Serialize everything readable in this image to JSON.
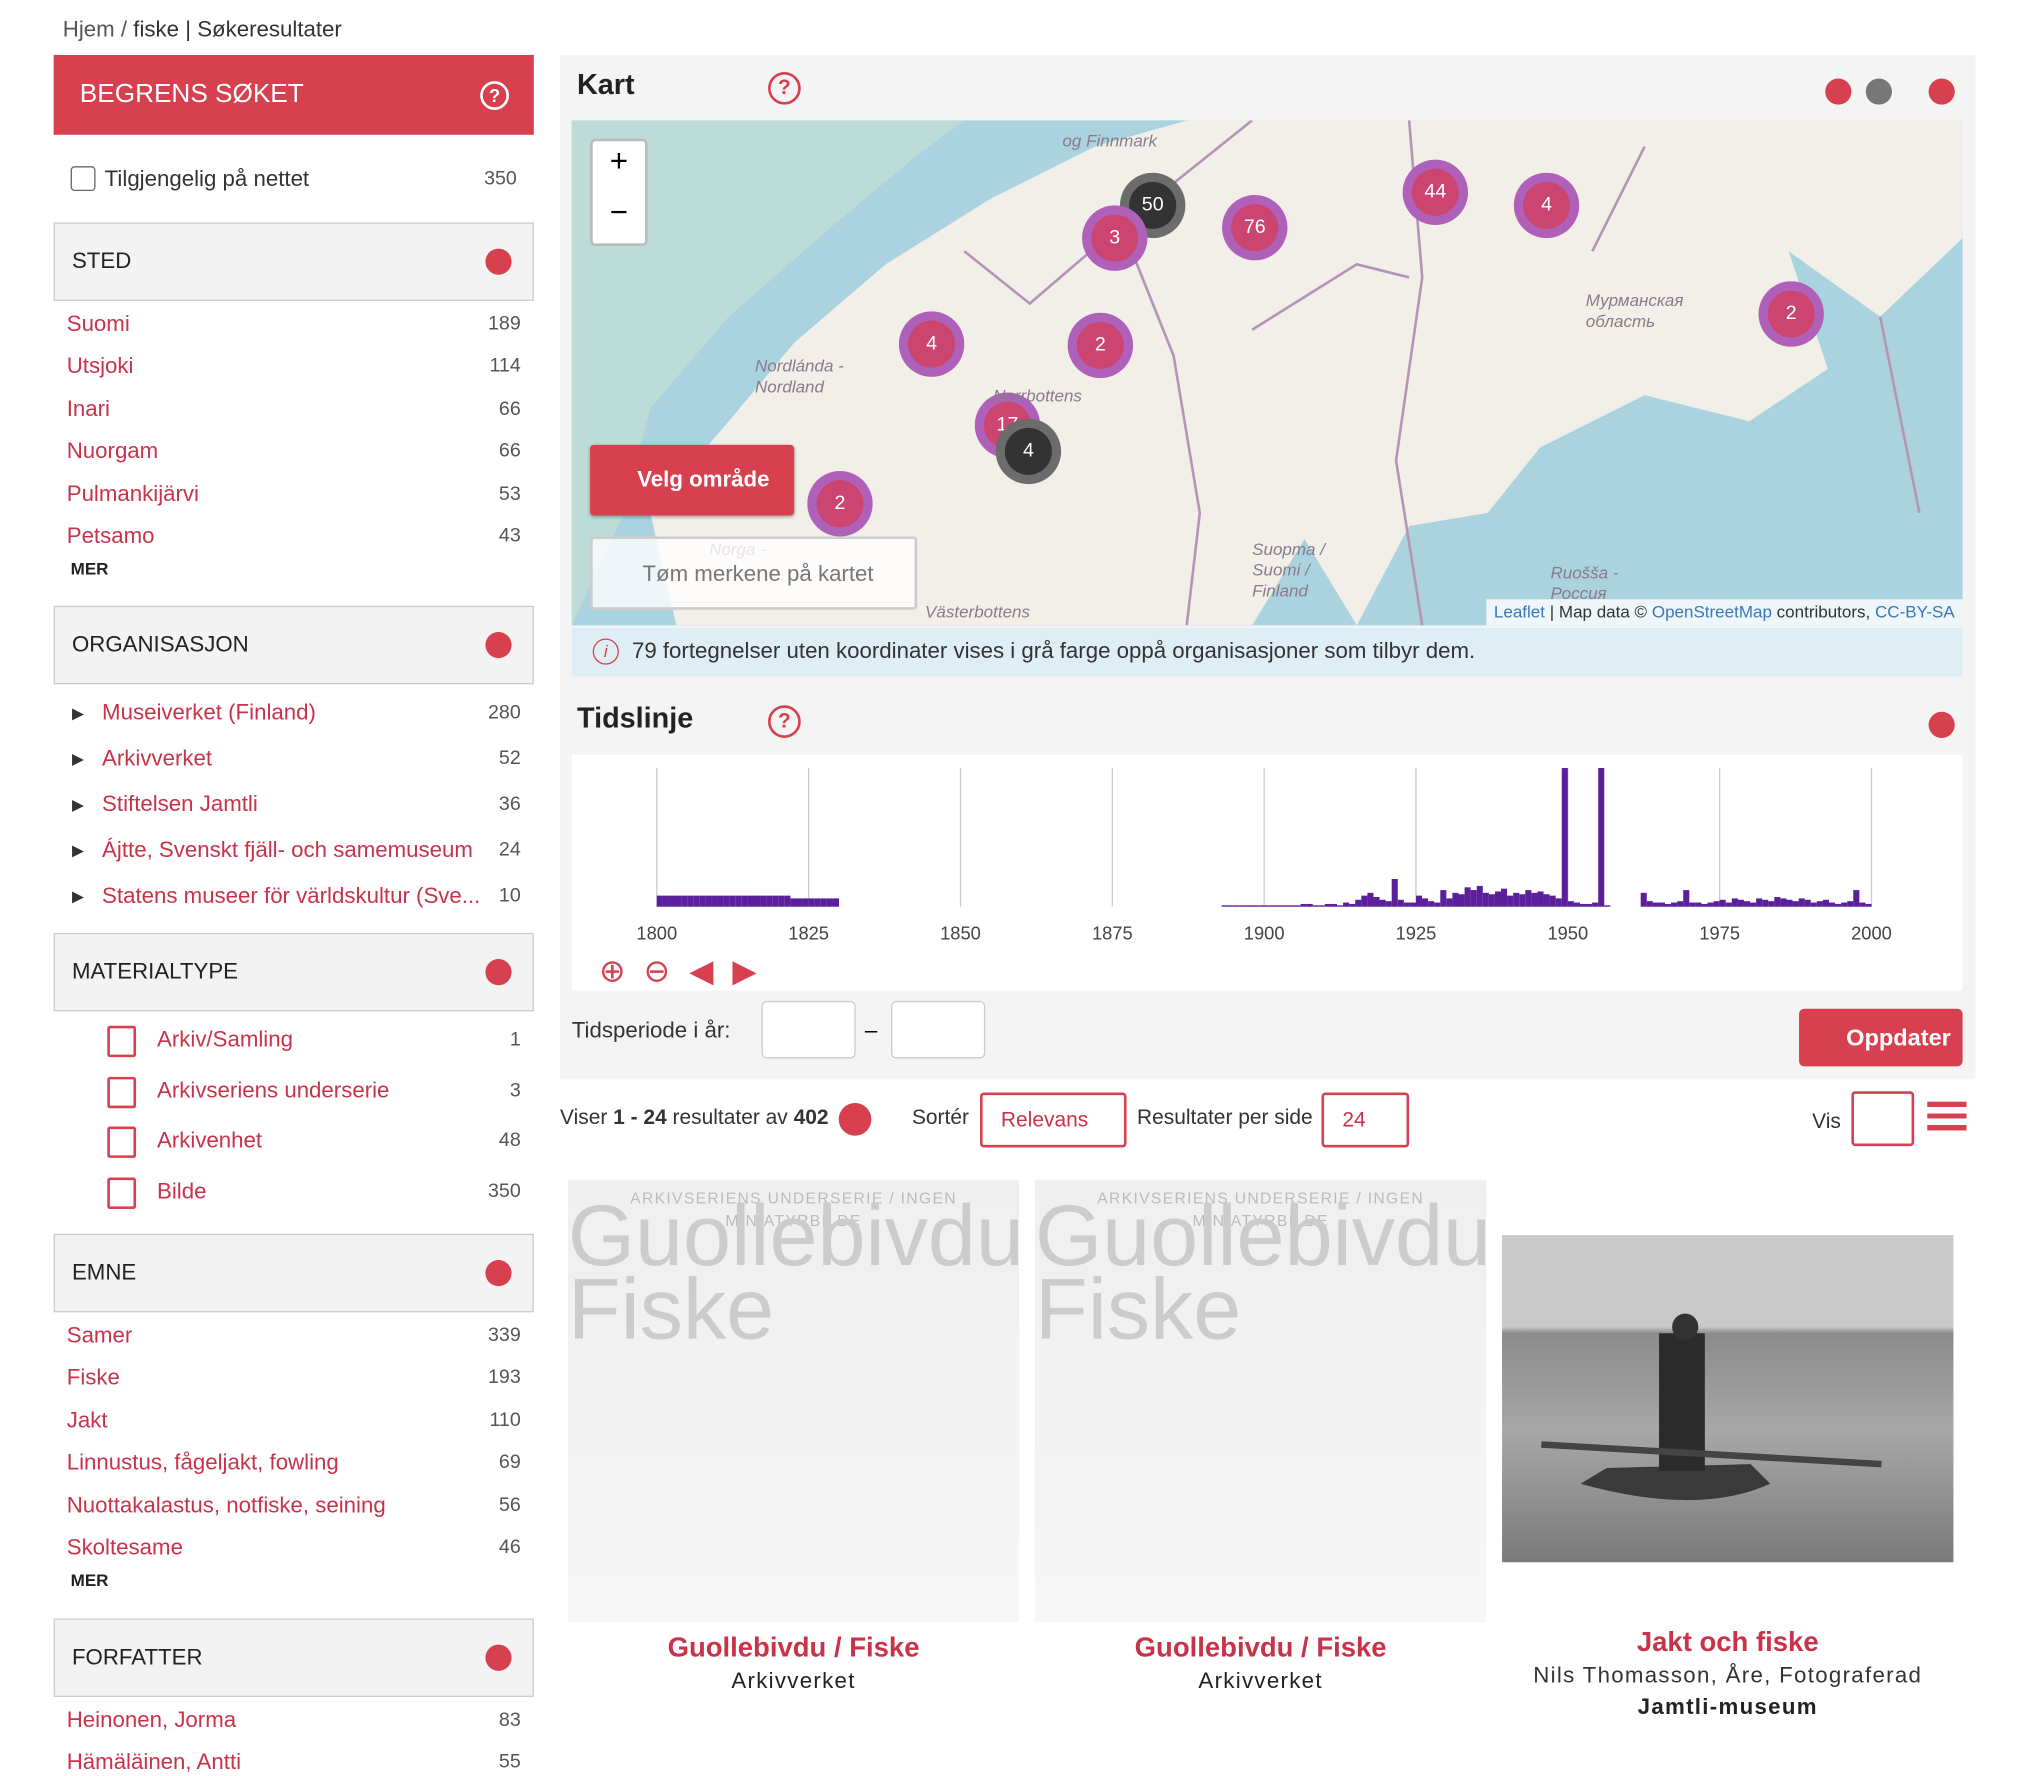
{
  "breadcrumb": {
    "home": "Hjem",
    "separator": "/",
    "query": "fiske",
    "page": "| Søkeresultater"
  },
  "sidebar": {
    "title": "BEGRENS SØKET",
    "online": {
      "label": "Tilgjengelig på nettet",
      "count": 350
    },
    "more": "MER",
    "facets": [
      {
        "title": "STED",
        "items": [
          {
            "label": "Suomi",
            "count": 189
          },
          {
            "label": "Utsjoki",
            "count": 114
          },
          {
            "label": "Inari",
            "count": 66
          },
          {
            "label": "Nuorgam",
            "count": 66
          },
          {
            "label": "Pulmankijärvi",
            "count": 53
          },
          {
            "label": "Petsamo",
            "count": 43
          }
        ],
        "has_more": true
      },
      {
        "title": "ORGANISASJON",
        "items": [
          {
            "label": "Museiverket (Finland)",
            "count": 280
          },
          {
            "label": "Arkivverket",
            "count": 52
          },
          {
            "label": "Stiftelsen Jamtli",
            "count": 36
          },
          {
            "label": "Ájtte, Svenskt fjäll- och samemuseum",
            "count": 24
          },
          {
            "label": "Statens museer för världskultur (Sve...",
            "count": 10
          }
        ],
        "has_more": false
      },
      {
        "title": "MATERIALTYPE",
        "items": [
          {
            "label": "Arkiv/Samling",
            "count": 1
          },
          {
            "label": "Arkivseriens underserie",
            "count": 3
          },
          {
            "label": "Arkivenhet",
            "count": 48
          },
          {
            "label": "Bilde",
            "count": 350
          }
        ],
        "has_more": false
      },
      {
        "title": "EMNE",
        "items": [
          {
            "label": "Samer",
            "count": 339
          },
          {
            "label": "Fiske",
            "count": 193
          },
          {
            "label": "Jakt",
            "count": 110
          },
          {
            "label": "Linnustus, fågeljakt, fowling",
            "count": 69
          },
          {
            "label": "Nuottakalastus, notfiske, seining",
            "count": 56
          },
          {
            "label": "Skoltesame",
            "count": 46
          }
        ],
        "has_more": true
      },
      {
        "title": "FORFATTER",
        "items": [
          {
            "label": "Heinonen, Jorma",
            "count": 83
          },
          {
            "label": "Hämäläinen, Antti",
            "count": 55
          }
        ],
        "has_more": false
      }
    ]
  },
  "map": {
    "title": "Kart",
    "zoom_in": "+",
    "zoom_out": "−",
    "clusters": [
      50,
      3,
      76,
      44,
      4,
      2,
      4,
      2,
      17,
      4,
      2
    ],
    "places": [
      "og Finnmark",
      "Nordlánda - Nordland",
      "Norrbottens",
      "Мурманская область",
      "Suopma / Suomi / Finland",
      "Ruošša - Россия",
      "Norga -",
      "Västerbottens"
    ],
    "select_area": "Velg område",
    "clear_marks": "Tøm merkene på kartet",
    "attribution": {
      "leaflet": "Leaflet",
      "map_data": "| Map data ©",
      "osm": "OpenStreetMap",
      "contributors": "contributors,",
      "license": "CC-BY-SA"
    },
    "info": "79 fortegnelser uten koordinater vises i grå farge oppå organisasjoner som tilbyr dem."
  },
  "timeline": {
    "title": "Tidslinje",
    "color": "#5b1f99",
    "xlim": [
      1786,
      2015
    ],
    "xticks": [
      1800,
      1825,
      1850,
      1875,
      1900,
      1925,
      1950,
      1975,
      2000
    ],
    "years": [
      1800,
      1801,
      1802,
      1803,
      1804,
      1805,
      1806,
      1807,
      1808,
      1809,
      1810,
      1811,
      1812,
      1813,
      1814,
      1815,
      1816,
      1817,
      1818,
      1819,
      1820,
      1821,
      1822,
      1823,
      1824,
      1825,
      1826,
      1827,
      1828,
      1829,
      1893,
      1894,
      1895,
      1896,
      1897,
      1898,
      1899,
      1900,
      1901,
      1902,
      1903,
      1904,
      1905,
      1906,
      1907,
      1908,
      1909,
      1910,
      1911,
      1912,
      1913,
      1914,
      1915,
      1916,
      1917,
      1918,
      1919,
      1920,
      1921,
      1922,
      1923,
      1924,
      1925,
      1926,
      1927,
      1928,
      1929,
      1930,
      1931,
      1932,
      1933,
      1934,
      1935,
      1936,
      1937,
      1938,
      1939,
      1940,
      1941,
      1942,
      1943,
      1944,
      1945,
      1946,
      1947,
      1948,
      1949,
      1950,
      1951,
      1952,
      1953,
      1954,
      1955,
      1956,
      1962,
      1963,
      1964,
      1965,
      1966,
      1967,
      1968,
      1969,
      1970,
      1971,
      1972,
      1973,
      1974,
      1975,
      1976,
      1977,
      1978,
      1979,
      1980,
      1981,
      1982,
      1983,
      1984,
      1985,
      1986,
      1987,
      1988,
      1989,
      1990,
      1991,
      1992,
      1993,
      1994,
      1995,
      1996,
      1997,
      1998,
      1999
    ],
    "counts": [
      8,
      8,
      8,
      8,
      8,
      8,
      8,
      8,
      8,
      8,
      8,
      8,
      8,
      8,
      8,
      8,
      8,
      8,
      8,
      8,
      8,
      8,
      6,
      6,
      6,
      6,
      6,
      6,
      6,
      6,
      1,
      1,
      1,
      1,
      1,
      1,
      1,
      1,
      1,
      1,
      1,
      1,
      1,
      2,
      2,
      1,
      1,
      2,
      2,
      1,
      3,
      2,
      5,
      8,
      10,
      7,
      5,
      4,
      20,
      5,
      3,
      3,
      8,
      6,
      4,
      3,
      12,
      6,
      10,
      9,
      14,
      12,
      15,
      10,
      9,
      11,
      13,
      8,
      10,
      9,
      12,
      10,
      11,
      9,
      8,
      6,
      100,
      4,
      3,
      2,
      2,
      3,
      100,
      1,
      10,
      4,
      3,
      3,
      2,
      3,
      4,
      12,
      3,
      3,
      2,
      3,
      4,
      5,
      3,
      6,
      5,
      4,
      3,
      6,
      5,
      4,
      7,
      6,
      5,
      4,
      6,
      5,
      3,
      4,
      5,
      3,
      2,
      3,
      4,
      12,
      3,
      2
    ],
    "period_label": "Tidsperiode i år:",
    "dash": "–",
    "update": "Oppdater"
  },
  "results": {
    "showing": "Viser",
    "from": 1,
    "separator": "-",
    "to": 24,
    "of": "resultater av",
    "total": 402,
    "sort_label": "Sortér",
    "sort_value": "Relevans",
    "per_page_label": "Resultater per side",
    "per_page": 24,
    "view_label": "Vis"
  },
  "cards": [
    {
      "placeholder": "ARKIVSERIENS UNDERSERIE / INGEN MINIATYRBILDE",
      "title": "Guollebivdu / Fiske",
      "org": "Arkivverket"
    },
    {
      "placeholder": "ARKIVSERIENS UNDERSERIE / INGEN MINIATYRBILDE",
      "title": "Guollebivdu / Fiske",
      "org": "Arkivverket"
    },
    {
      "title": "Jakt och fiske",
      "creator": "Nils Thomasson, Åre, Fotograferad",
      "org": "Jamtli-museum"
    }
  ]
}
